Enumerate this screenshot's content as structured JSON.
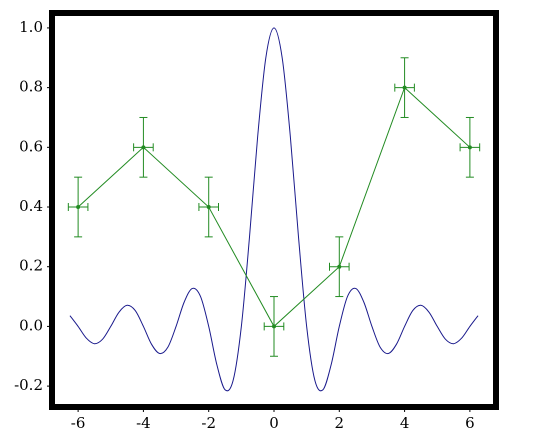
{
  "chart_data": [
    {
      "type": "line",
      "color": "#1a1a8c",
      "x": [
        -6.25,
        -6,
        -5.75,
        -5.5,
        -5.25,
        -5,
        -4.75,
        -4.5,
        -4.25,
        -4,
        -3.75,
        -3.5,
        -3.25,
        -3,
        -2.75,
        -2.5,
        -2.25,
        -2,
        -1.75,
        -1.5,
        -1.25,
        -1,
        -0.75,
        -0.5,
        -0.25,
        0,
        0.25,
        0.5,
        0.75,
        1,
        1.25,
        1.5,
        1.75,
        2,
        2.25,
        2.5,
        2.75,
        3,
        3.25,
        3.5,
        3.75,
        4,
        4.25,
        4.5,
        4.75,
        5,
        5.25,
        5.5,
        5.75,
        6,
        6.25
      ],
      "values": [
        0.036,
        0,
        -0.0391,
        -0.0579,
        -0.0429,
        0,
        0.0474,
        0.0707,
        0.053,
        0,
        -0.06,
        -0.0909,
        -0.0693,
        0,
        0.0818,
        0.1273,
        0.1,
        0,
        -0.1286,
        -0.2122,
        -0.1801,
        0,
        0.3001,
        0.6366,
        0.9003,
        1,
        0.9003,
        0.6366,
        0.3001,
        0,
        -0.1801,
        -0.2122,
        -0.1286,
        0,
        0.1,
        0.1273,
        0.0818,
        0,
        -0.0693,
        -0.0909,
        -0.06,
        0,
        0.053,
        0.0707,
        0.0474,
        0,
        -0.0429,
        -0.0579,
        -0.0391,
        0,
        0.036
      ],
      "xlim": [
        -6.8,
        6.8
      ],
      "ylim": [
        -0.27,
        1.05
      ],
      "xticks": [
        -6,
        -4,
        -2,
        0,
        2,
        4,
        6
      ],
      "yticks": [
        -0.2,
        {
          "value": 0,
          "label": "0.0"
        },
        0.2,
        0.4,
        0.6,
        0.8,
        {
          "value": 1,
          "label": "1.0"
        }
      ]
    },
    {
      "type": "errorbar",
      "color": "#228b22",
      "x": [
        -6,
        -4,
        -2,
        0,
        2,
        4,
        6
      ],
      "values": [
        0.4,
        0.6,
        0.4,
        0,
        0.2,
        0.8,
        0.6
      ],
      "yerr": [
        0.1,
        0.1,
        0.1,
        0.1,
        0.1,
        0.1,
        0.1
      ],
      "xerr": [
        0.3,
        0.3,
        0.3,
        0.3,
        0.3,
        0.3,
        0.3
      ],
      "xlim": [
        -6.8,
        6.8
      ],
      "ylim": [
        -0.27,
        1.05
      ]
    }
  ]
}
